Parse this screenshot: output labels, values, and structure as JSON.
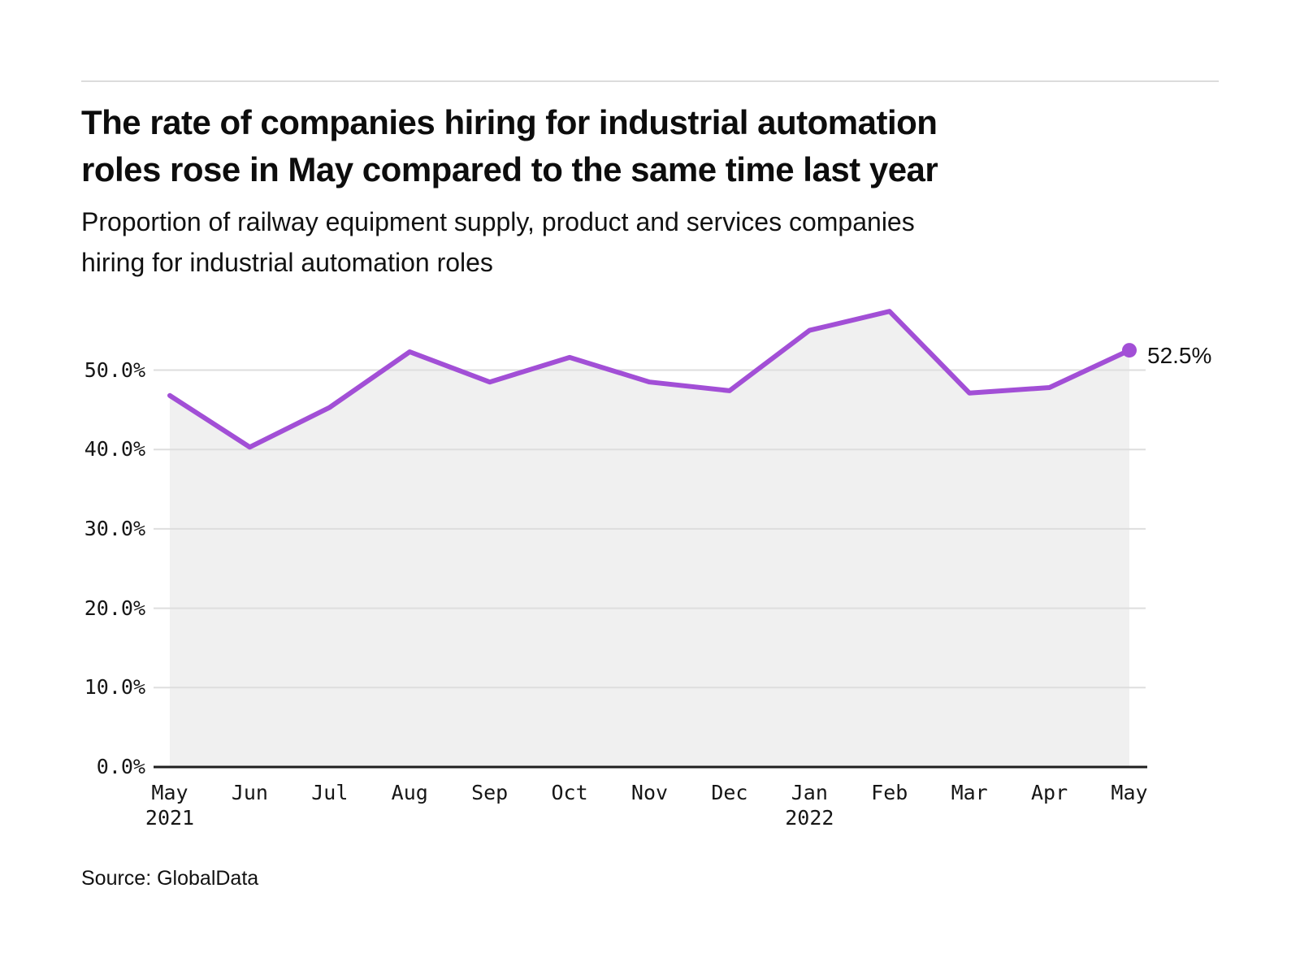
{
  "header": {
    "title_lines": [
      "The rate of companies hiring for industrial automation",
      "roles rose in May compared to the same time last year"
    ],
    "subtitle_lines": [
      "Proportion of railway equipment supply, product and services companies",
      "hiring for industrial automation roles"
    ]
  },
  "chart_data": {
    "type": "area",
    "x": [
      "May",
      "Jun",
      "Jul",
      "Aug",
      "Sep",
      "Oct",
      "Nov",
      "Dec",
      "Jan",
      "Feb",
      "Mar",
      "Apr",
      "May"
    ],
    "x_years": {
      "0": "2021",
      "8": "2022"
    },
    "series": [
      {
        "name": "Proportion of companies hiring for industrial automation roles",
        "values": [
          46.8,
          40.3,
          45.3,
          52.3,
          48.5,
          51.6,
          48.5,
          47.4,
          55.0,
          57.4,
          47.1,
          47.8,
          52.5
        ]
      }
    ],
    "end_label": "52.5%",
    "y_ticks": [
      "0.0%",
      "10.0%",
      "20.0%",
      "30.0%",
      "40.0%",
      "50.0%"
    ],
    "y_tick_values": [
      0,
      10,
      20,
      30,
      40,
      50
    ],
    "ylim": [
      0,
      60
    ],
    "grid": "horizontal",
    "legend": "none",
    "line_color": "#A24FD6",
    "fill_color": "#F0F0F0",
    "grid_color": "#DEDEDE",
    "axis_color": "#1F1F1F"
  },
  "footer": {
    "source": "Source: GlobalData"
  }
}
